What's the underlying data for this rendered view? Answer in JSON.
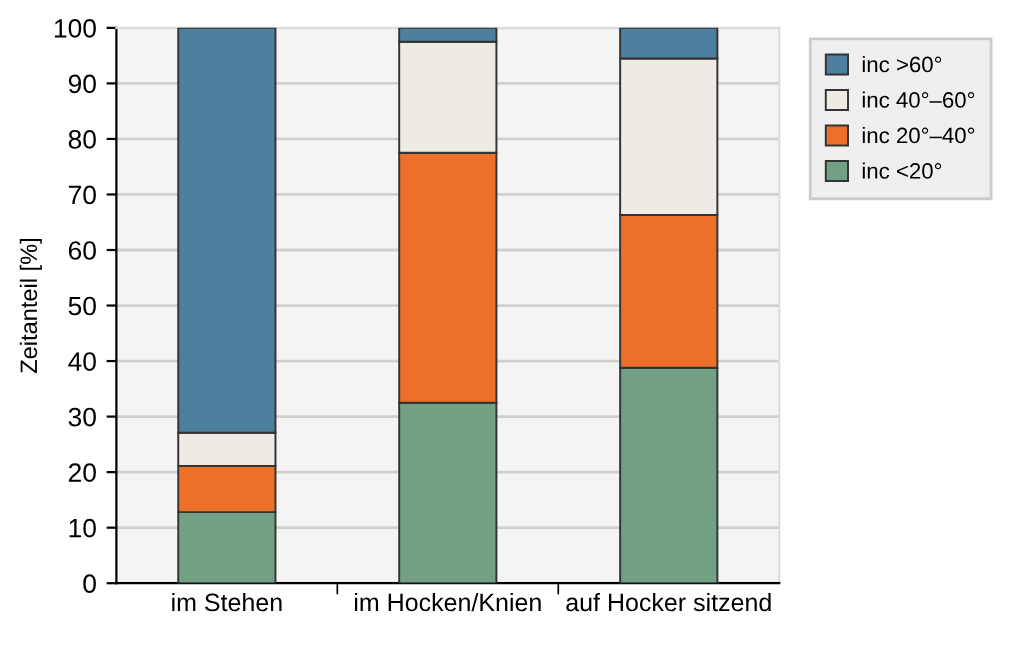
{
  "chart_data": {
    "type": "bar",
    "stacked": true,
    "ylabel": "Zeitanteil [%]",
    "categories": [
      "im Stehen",
      "im Hocken/Knien",
      "auf Hocker sitzend"
    ],
    "series": [
      {
        "name": "inc <20°",
        "color": "#72a084",
        "values": [
          12.8,
          32.5,
          38.8
        ]
      },
      {
        "name": "inc 20°–40°",
        "color": "#ec7029",
        "values": [
          8.3,
          45.0,
          27.5
        ]
      },
      {
        "name": "inc 40°–60°",
        "color": "#edebe4",
        "values": [
          6.0,
          20.0,
          28.2
        ]
      },
      {
        "name": "inc >60°",
        "color": "#4f7f9f",
        "values": [
          72.9,
          2.5,
          5.5
        ]
      }
    ],
    "ylim": [
      0,
      100
    ],
    "yticks": [
      0,
      10,
      20,
      30,
      40,
      50,
      60,
      70,
      80,
      90,
      100
    ],
    "grid": "y",
    "legend": "top right"
  }
}
